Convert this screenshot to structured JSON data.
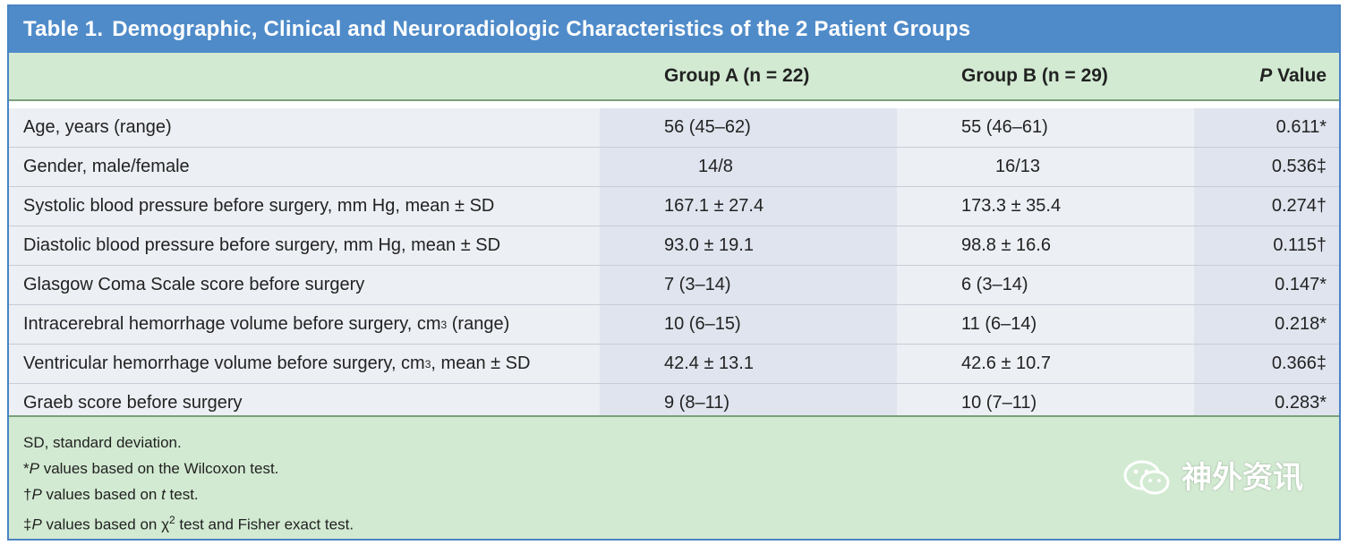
{
  "table": {
    "title_num": "Table 1.",
    "title_text": "Demographic, Clinical and Neuroradiologic Characteristics of the 2 Patient Groups",
    "headers": {
      "label": "",
      "group_a": "Group A (n = 22)",
      "group_b": "Group B (n = 29)",
      "p_italic": "P",
      "p_rest": " Value"
    },
    "rows": [
      {
        "label": "Age, years (range)",
        "a": "56 (45–62)",
        "b": "55 (46–61)",
        "p": "0.611*"
      },
      {
        "label": "Gender, male/female",
        "a": "14/8",
        "b": "16/13",
        "p": "0.536‡"
      },
      {
        "label": "Systolic blood pressure before surgery, mm Hg, mean ± SD",
        "a": "167.1 ± 27.4",
        "b": "173.3 ± 35.4",
        "p": "0.274†"
      },
      {
        "label": "Diastolic blood pressure before surgery, mm Hg, mean ± SD",
        "a": "93.0 ± 19.1",
        "b": "98.8 ± 16.6",
        "p": "0.115†"
      },
      {
        "label": "Glasgow Coma Scale score before surgery",
        "a": "7 (3–14)",
        "b": "6 (3–14)",
        "p": "0.147*"
      },
      {
        "label_pre": "Intracerebral hemorrhage volume before surgery, cm",
        "label_sup": "3",
        "label_post": " (range)",
        "a": "10 (6–15)",
        "b": "11 (6–14)",
        "p": "0.218*"
      },
      {
        "label_pre": "Ventricular hemorrhage volume before surgery, cm",
        "label_sup": "3",
        "label_post": ", mean ± SD",
        "a": "42.4 ± 13.1",
        "b": "42.6 ± 10.7",
        "p": "0.366‡"
      },
      {
        "label": "Graeb score before surgery",
        "a": "9 (8–11)",
        "b": "10 (7–11)",
        "p": "0.283*"
      }
    ],
    "footnotes": {
      "sd": "SD, standard deviation.",
      "f1_mark": "*",
      "f1_p": "P",
      "f1_text": " values based on the Wilcoxon test.",
      "f2_mark": "†",
      "f2_p": "P",
      "f2_mid": " values based on ",
      "f2_t": "t",
      "f2_end": " test.",
      "f3_mark": "‡",
      "f3_p": "P",
      "f3_mid": " values based on χ",
      "f3_sup": "2",
      "f3_end": " test and Fisher exact test."
    },
    "watermark": "神外资讯"
  }
}
